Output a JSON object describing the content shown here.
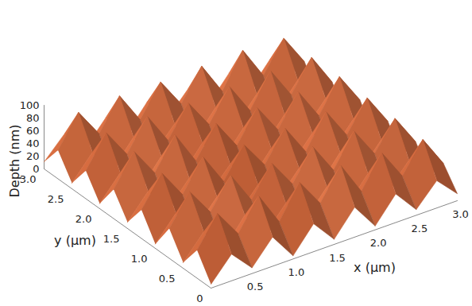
{
  "chart_data": {
    "type": "surface",
    "xlabel": "x (µm)",
    "ylabel": "y (µm)",
    "zlabel": "Depth (nm)",
    "xlim": [
      0,
      3
    ],
    "ylim": [
      0,
      3
    ],
    "zlim": [
      0,
      100
    ],
    "xticks": [
      0.5,
      {
        "value": 1,
        "label": "1.0"
      },
      1.5,
      {
        "value": 2,
        "label": "2.0"
      },
      2.5,
      {
        "value": 3,
        "label": "3.0"
      }
    ],
    "yticks": [
      0,
      0.5,
      {
        "value": 1,
        "label": "1.0"
      },
      1.5,
      {
        "value": 2,
        "label": "2.0"
      },
      2.5,
      {
        "value": 3,
        "label": "3.0"
      }
    ],
    "zticks": [
      0,
      20,
      40,
      60,
      80,
      100
    ],
    "x": [
      0,
      0.25,
      0.5,
      0.75,
      1,
      1.25,
      1.5,
      1.75,
      2,
      2.25,
      2.5,
      2.75,
      3
    ],
    "y": [
      0,
      0.25,
      0.5,
      0.75,
      1,
      1.25,
      1.5,
      1.75,
      2,
      2.25,
      2.5,
      2.75,
      3
    ],
    "z": [
      [
        6,
        42,
        9,
        46,
        5,
        44,
        8,
        47,
        6,
        45,
        9,
        43,
        11
      ],
      [
        44,
        90,
        47,
        95,
        43,
        93,
        49,
        97,
        45,
        94,
        46,
        92,
        43
      ],
      [
        9,
        46,
        7,
        49,
        8,
        45,
        10,
        48,
        7,
        46,
        8,
        44,
        10
      ],
      [
        47,
        93,
        50,
        96,
        46,
        92,
        48,
        95,
        47,
        97,
        50,
        94,
        46
      ],
      [
        7,
        44,
        10,
        47,
        6,
        43,
        9,
        46,
        8,
        48,
        7,
        45,
        9
      ],
      [
        45,
        91,
        46,
        94,
        44,
        90,
        47,
        93,
        45,
        96,
        48,
        95,
        47
      ],
      [
        10,
        47,
        8,
        45,
        9,
        44,
        7,
        46,
        10,
        47,
        9,
        46,
        8
      ],
      [
        46,
        94,
        49,
        97,
        45,
        92,
        46,
        94,
        48,
        96,
        47,
        97,
        49
      ],
      [
        8,
        45,
        9,
        48,
        7,
        46,
        8,
        47,
        6,
        45,
        10,
        47,
        7
      ],
      [
        44,
        92,
        47,
        95,
        46,
        93,
        48,
        96,
        47,
        98,
        49,
        96,
        46
      ],
      [
        9,
        46,
        8,
        47,
        10,
        45,
        9,
        48,
        8,
        46,
        7,
        45,
        10
      ],
      [
        45,
        93,
        48,
        96,
        47,
        95,
        49,
        97,
        46,
        99,
        48,
        95,
        47
      ],
      [
        11,
        44,
        9,
        46,
        8,
        47,
        10,
        45,
        9,
        47,
        8,
        46,
        12
      ]
    ]
  }
}
